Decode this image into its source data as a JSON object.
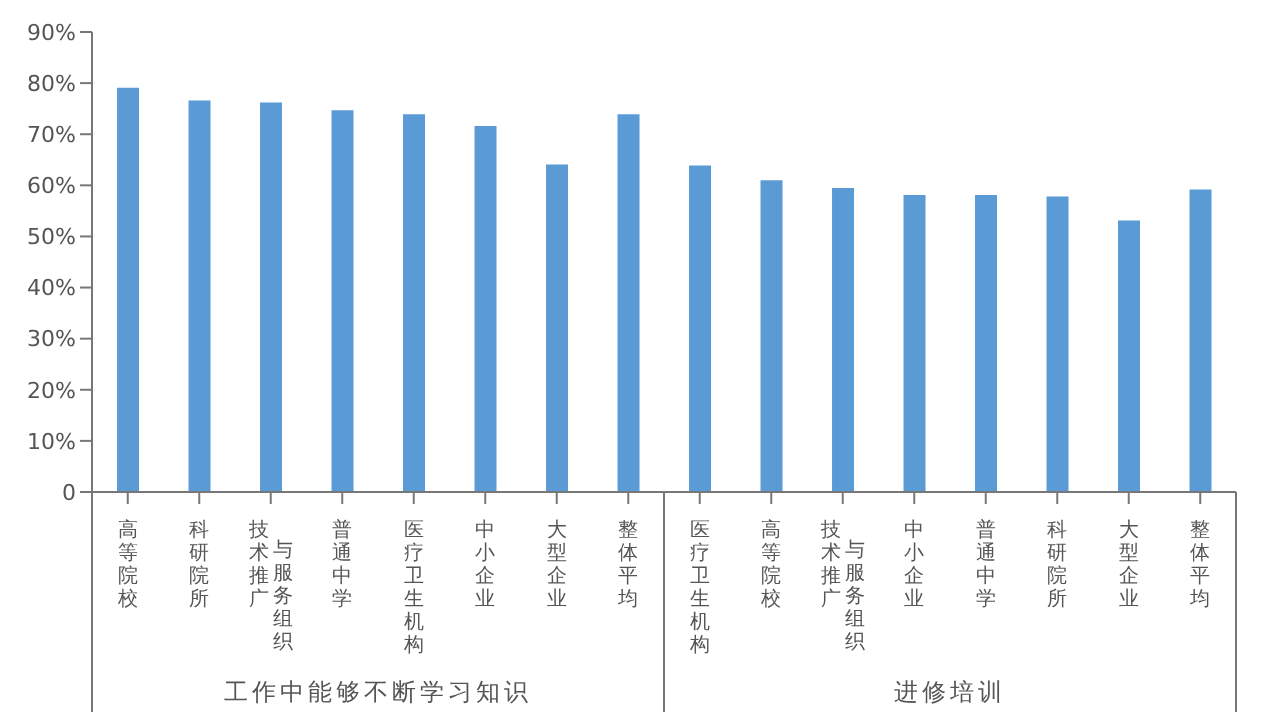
{
  "chart_data": {
    "type": "bar",
    "categories": [
      "高等院校",
      "科研院所",
      "技术推广与服务组织",
      "普通中学",
      "医疗卫生机构",
      "中小企业",
      "大型企业",
      "整体平均",
      "医疗卫生机构",
      "高等院校",
      "技术推广与服务组织",
      "中小企业",
      "普通中学",
      "科研院所",
      "大型企业",
      "整体平均"
    ],
    "values": [
      79.1,
      76.6,
      76.2,
      74.7,
      73.9,
      71.6,
      64.1,
      73.9,
      63.9,
      61.0,
      59.5,
      58.1,
      58.1,
      57.8,
      53.1,
      59.2
    ],
    "color": "#5b9bd5",
    "ylim": [
      0,
      90
    ],
    "yticks": [
      0,
      {
        "value": 10,
        "label": "10%"
      },
      {
        "value": 20,
        "label": "20%"
      },
      {
        "value": 30,
        "label": "30%"
      },
      {
        "value": 40,
        "label": "40%"
      },
      {
        "value": 50,
        "label": "50%"
      },
      {
        "value": 60,
        "label": "60%"
      },
      {
        "value": 70,
        "label": "70%"
      },
      {
        "value": 80,
        "label": "80%"
      },
      {
        "value": 90,
        "label": "90%"
      }
    ],
    "annotations": [
      "工作中能够不断学习知识",
      "进修培训"
    ],
    "grid": false,
    "legend": false
  }
}
